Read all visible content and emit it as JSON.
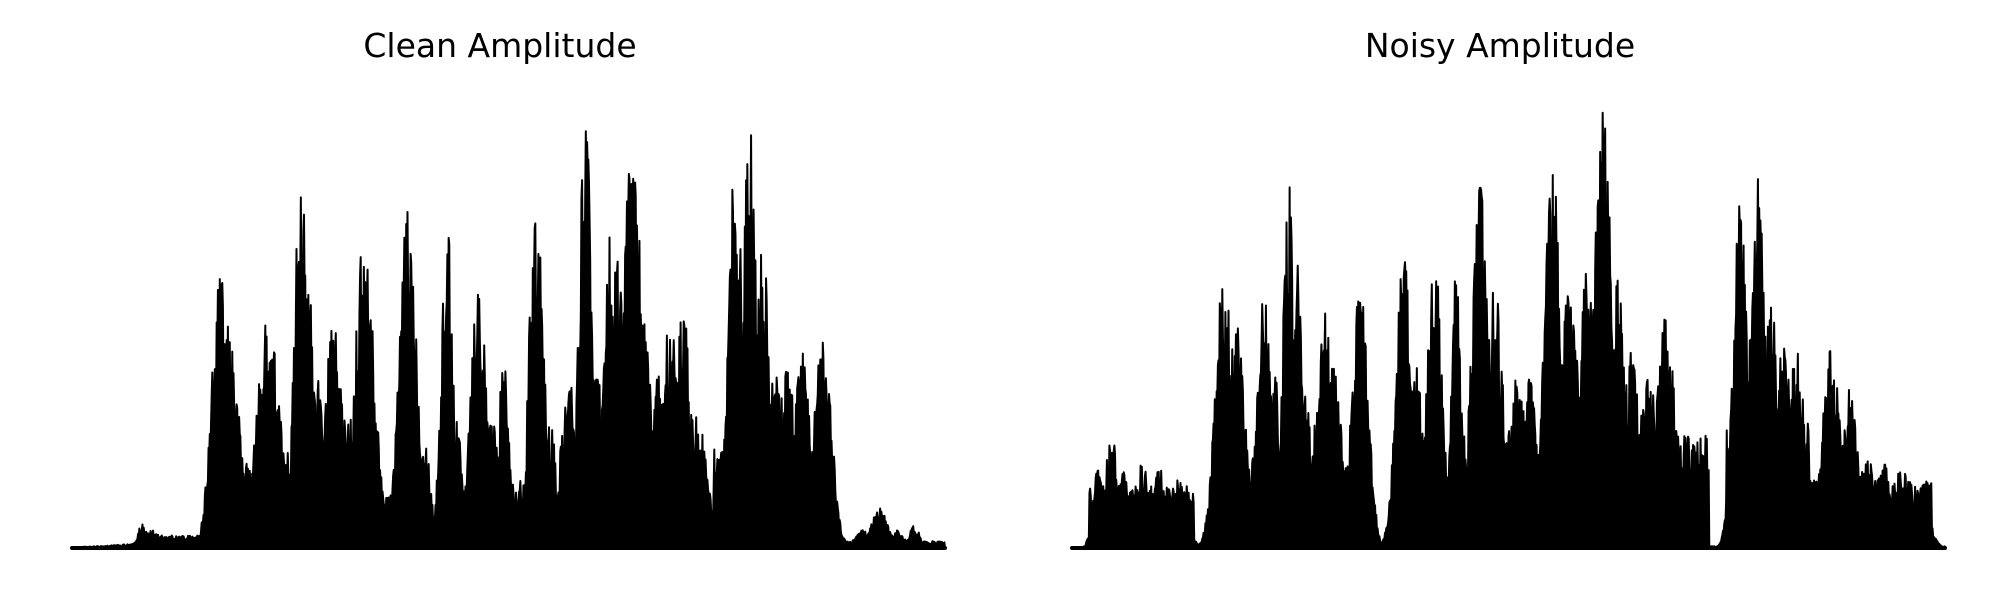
{
  "colors": {
    "waveform": "#000000",
    "background": "#ffffff"
  },
  "chart_data": [
    {
      "type": "area",
      "title": "Clean Amplitude",
      "axes_visible": false,
      "grid": false,
      "ylim": [
        0,
        1
      ],
      "series": [
        {
          "peaks": [
            [
              0.08,
              0.058,
              0.004
            ],
            [
              0.09,
              0.04,
              0.012
            ],
            [
              0.115,
              0.012,
              0.06
            ],
            [
              0.17,
              0.6,
              0.01
            ],
            [
              0.18,
              0.5,
              0.01
            ],
            [
              0.19,
              0.3,
              0.007
            ],
            [
              0.2,
              0.2,
              0.012
            ],
            [
              0.21,
              0.08,
              0.008
            ],
            [
              0.225,
              0.52,
              0.013
            ],
            [
              0.24,
              0.15,
              0.01
            ],
            [
              0.25,
              0.22,
              0.008
            ],
            [
              0.262,
              0.87,
              0.007
            ],
            [
              0.272,
              0.6,
              0.006
            ],
            [
              0.28,
              0.4,
              0.008
            ],
            [
              0.3,
              0.5,
              0.011
            ],
            [
              0.315,
              0.3,
              0.013
            ],
            [
              0.335,
              0.7,
              0.011
            ],
            [
              0.345,
              0.35,
              0.008
            ],
            [
              0.385,
              0.76,
              0.01
            ],
            [
              0.4,
              0.3,
              0.009
            ],
            [
              0.43,
              0.72,
              0.007
            ],
            [
              0.44,
              0.3,
              0.007
            ],
            [
              0.465,
              0.62,
              0.009
            ],
            [
              0.48,
              0.3,
              0.009
            ],
            [
              0.495,
              0.44,
              0.007
            ],
            [
              0.532,
              0.82,
              0.008
            ],
            [
              0.548,
              0.3,
              0.006
            ],
            [
              0.57,
              0.38,
              0.01
            ],
            [
              0.588,
              1.0,
              0.007
            ],
            [
              0.6,
              0.4,
              0.01
            ],
            [
              0.615,
              0.72,
              0.006
            ],
            [
              0.625,
              0.65,
              0.011
            ],
            [
              0.642,
              0.9,
              0.012
            ],
            [
              0.655,
              0.5,
              0.011
            ],
            [
              0.67,
              0.4,
              0.01
            ],
            [
              0.685,
              0.55,
              0.008
            ],
            [
              0.7,
              0.54,
              0.008
            ],
            [
              0.715,
              0.3,
              0.012
            ],
            [
              0.76,
              0.89,
              0.008
            ],
            [
              0.777,
              1.0,
              0.008
            ],
            [
              0.79,
              0.7,
              0.009
            ],
            [
              0.805,
              0.4,
              0.01
            ],
            [
              0.82,
              0.4,
              0.012
            ],
            [
              0.835,
              0.45,
              0.01
            ],
            [
              0.86,
              0.47,
              0.01
            ],
            [
              0.905,
              0.04,
              0.008
            ],
            [
              0.925,
              0.09,
              0.009
            ],
            [
              0.945,
              0.04,
              0.008
            ],
            [
              0.965,
              0.05,
              0.006
            ]
          ],
          "segments": [
            [
              0.0,
              0.08,
              0.002
            ],
            [
              0.08,
              0.16,
              0.028
            ],
            [
              0.16,
              0.245,
              0.12
            ],
            [
              0.245,
              0.275,
              0.25
            ],
            [
              0.275,
              0.31,
              0.15
            ],
            [
              0.31,
              0.335,
              0.004
            ],
            [
              0.335,
              0.38,
              0.12
            ],
            [
              0.38,
              0.41,
              0.2
            ],
            [
              0.41,
              0.44,
              0.004
            ],
            [
              0.44,
              0.56,
              0.15
            ],
            [
              0.56,
              0.575,
              0.02
            ],
            [
              0.575,
              0.72,
              0.3
            ],
            [
              0.72,
              0.735,
              0.01
            ],
            [
              0.735,
              0.86,
              0.22
            ],
            [
              0.86,
              0.875,
              0.02
            ],
            [
              0.875,
              1.0,
              0.015
            ]
          ]
        }
      ]
    },
    {
      "type": "area",
      "title": "Noisy Amplitude",
      "axes_visible": false,
      "grid": false,
      "ylim": [
        0,
        1
      ],
      "series": [
        {
          "peaks": [
            [
              0.03,
              0.18,
              0.006
            ],
            [
              0.045,
              0.28,
              0.006
            ],
            [
              0.06,
              0.17,
              0.009
            ],
            [
              0.08,
              0.2,
              0.008
            ],
            [
              0.1,
              0.18,
              0.007
            ],
            [
              0.12,
              0.16,
              0.01
            ],
            [
              0.175,
              0.65,
              0.01
            ],
            [
              0.19,
              0.5,
              0.01
            ],
            [
              0.22,
              0.56,
              0.009
            ],
            [
              0.232,
              0.4,
              0.006
            ],
            [
              0.248,
              0.83,
              0.006
            ],
            [
              0.258,
              0.63,
              0.006
            ],
            [
              0.265,
              0.4,
              0.008
            ],
            [
              0.29,
              0.52,
              0.011
            ],
            [
              0.3,
              0.4,
              0.01
            ],
            [
              0.33,
              0.62,
              0.009
            ],
            [
              0.38,
              0.65,
              0.009
            ],
            [
              0.395,
              0.4,
              0.007
            ],
            [
              0.415,
              0.65,
              0.009
            ],
            [
              0.44,
              0.62,
              0.006
            ],
            [
              0.468,
              0.8,
              0.01
            ],
            [
              0.485,
              0.6,
              0.009
            ],
            [
              0.51,
              0.4,
              0.01
            ],
            [
              0.525,
              0.38,
              0.009
            ],
            [
              0.55,
              0.88,
              0.009
            ],
            [
              0.57,
              0.6,
              0.01
            ],
            [
              0.59,
              0.65,
              0.008
            ],
            [
              0.608,
              1.0,
              0.01
            ],
            [
              0.625,
              0.6,
              0.01
            ],
            [
              0.64,
              0.45,
              0.01
            ],
            [
              0.66,
              0.4,
              0.01
            ],
            [
              0.68,
              0.55,
              0.01
            ],
            [
              0.765,
              0.78,
              0.008
            ],
            [
              0.785,
              0.88,
              0.008
            ],
            [
              0.8,
              0.56,
              0.01
            ],
            [
              0.815,
              0.45,
              0.01
            ],
            [
              0.83,
              0.45,
              0.01
            ],
            [
              0.87,
              0.46,
              0.01
            ],
            [
              0.89,
              0.35,
              0.01
            ],
            [
              0.91,
              0.22,
              0.01
            ],
            [
              0.93,
              0.2,
              0.01
            ],
            [
              0.95,
              0.18,
              0.01
            ],
            [
              0.97,
              0.15,
              0.01
            ]
          ],
          "segments": [
            [
              0.0,
              0.02,
              0.002
            ],
            [
              0.02,
              0.14,
              0.14
            ],
            [
              0.14,
              0.16,
              0.004
            ],
            [
              0.16,
              0.345,
              0.2
            ],
            [
              0.345,
              0.375,
              0.01
            ],
            [
              0.375,
              0.42,
              0.12
            ],
            [
              0.42,
              0.44,
              0.004
            ],
            [
              0.44,
              0.73,
              0.25
            ],
            [
              0.73,
              0.75,
              0.004
            ],
            [
              0.75,
              0.845,
              0.28
            ],
            [
              0.845,
              0.985,
              0.15
            ],
            [
              0.985,
              1.0,
              0.004
            ]
          ]
        }
      ]
    }
  ]
}
